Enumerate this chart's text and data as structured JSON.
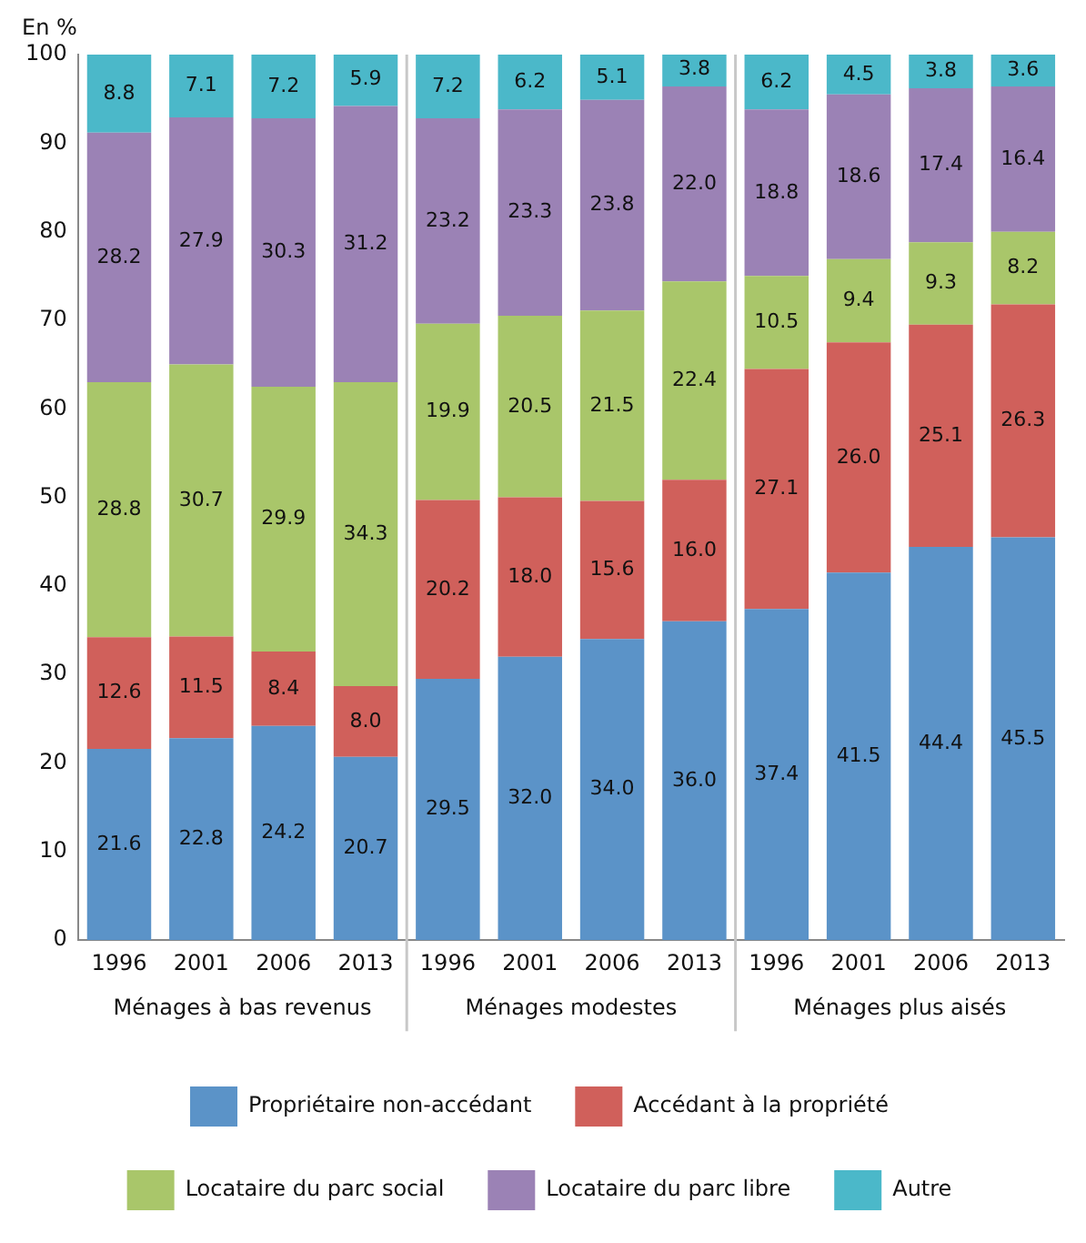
{
  "chart_data": {
    "type": "bar",
    "stacked": true,
    "ylabel": "En %",
    "categories": [
      "1996",
      "2001",
      "2006",
      "2013",
      "1996",
      "2001",
      "2006",
      "2013",
      "1996",
      "2001",
      "2006",
      "2013"
    ],
    "annotations": [
      "Ménages à bas revenus",
      "Ménages modestes",
      "Ménages plus aisés"
    ],
    "series": [
      {
        "name": "Propriétaire non-accédant",
        "color": "#5b93c8",
        "values": [
          21.6,
          22.8,
          24.2,
          20.7,
          29.5,
          32.0,
          34.0,
          36.0,
          37.4,
          41.5,
          44.4,
          45.5
        ],
        "value_labels": [
          "21.6",
          "22.8",
          "24.2",
          "20.7",
          "29.5",
          "32.0",
          "34.0",
          "36.0",
          "37.4",
          "41.5",
          "44.4",
          "45.5"
        ]
      },
      {
        "name": "Accédant à la propriété",
        "color": "#d0605b",
        "values": [
          12.6,
          11.5,
          8.4,
          8.0,
          20.2,
          18.0,
          15.6,
          16.0,
          27.1,
          26.0,
          25.1,
          26.3
        ],
        "value_labels": [
          "12.6",
          "11.5",
          "8.4",
          "8.0",
          "20.2",
          "18.0",
          "15.6",
          "16.0",
          "27.1",
          "26.0",
          "25.1",
          "26.3"
        ]
      },
      {
        "name": "Locataire du parc social",
        "color": "#a9c66a",
        "values": [
          28.8,
          30.7,
          29.9,
          34.3,
          19.9,
          20.5,
          21.5,
          22.4,
          10.5,
          9.4,
          9.3,
          8.2
        ],
        "value_labels": [
          "28.8",
          "30.7",
          "29.9",
          "34.3",
          "19.9",
          "20.5",
          "21.5",
          "22.4",
          "10.5",
          "9.4",
          "9.3",
          "8.2"
        ]
      },
      {
        "name": "Locataire du parc libre",
        "color": "#9b82b5",
        "values": [
          28.2,
          27.9,
          30.3,
          31.2,
          23.2,
          23.3,
          23.8,
          22.0,
          18.8,
          18.6,
          17.4,
          16.4
        ],
        "value_labels": [
          "28.2",
          "27.9",
          "30.3",
          "31.2",
          "23.2",
          "23.3",
          "23.8",
          "22.0",
          "18.8",
          "18.6",
          "17.4",
          "16.4"
        ]
      },
      {
        "name": "Autre",
        "color": "#4bb8c9",
        "values": [
          8.8,
          7.1,
          7.2,
          5.9,
          7.2,
          6.2,
          5.1,
          3.8,
          6.2,
          4.5,
          3.8,
          3.6
        ],
        "value_labels": [
          "8.8",
          "7.1",
          "7.2",
          "5.9",
          "7.2",
          "6.2",
          "5.1",
          "3.8",
          "6.2",
          "4.5",
          "3.8",
          "3.6"
        ]
      }
    ],
    "ylim": [
      0,
      100
    ],
    "yticks": [
      0,
      10,
      20,
      30,
      40,
      50,
      60,
      70,
      80,
      90,
      100
    ],
    "grid": false,
    "legend": "bottom"
  }
}
